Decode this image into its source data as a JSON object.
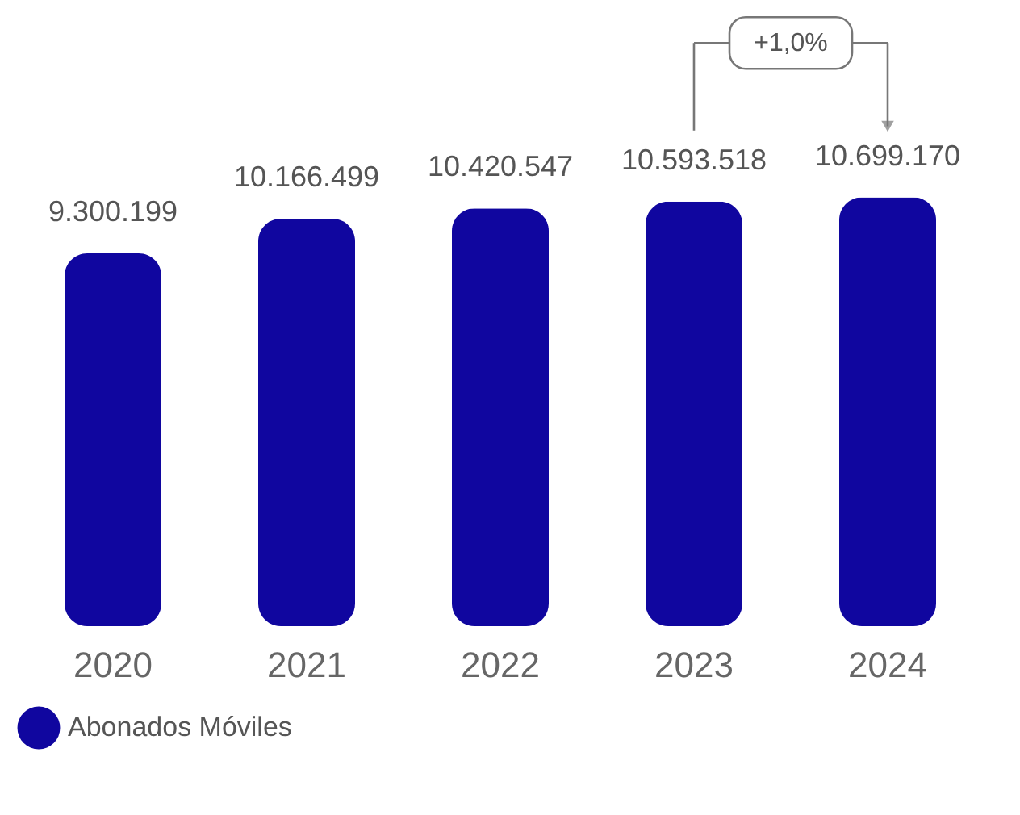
{
  "chart_data": {
    "type": "bar",
    "categories": [
      "2020",
      "2021",
      "2022",
      "2023",
      "2024"
    ],
    "series": [
      {
        "name": "Abonados Móviles",
        "color": "#10069f",
        "values": [
          9300199,
          10166499,
          10420547,
          10593518,
          10699170
        ],
        "value_labels": [
          "9.300.199",
          "10.166.499",
          "10.420.547",
          "10.593.518",
          "10.699.170"
        ]
      }
    ],
    "annotations": [
      "+1,0%"
    ],
    "legend": "bottom left",
    "grid": false
  }
}
